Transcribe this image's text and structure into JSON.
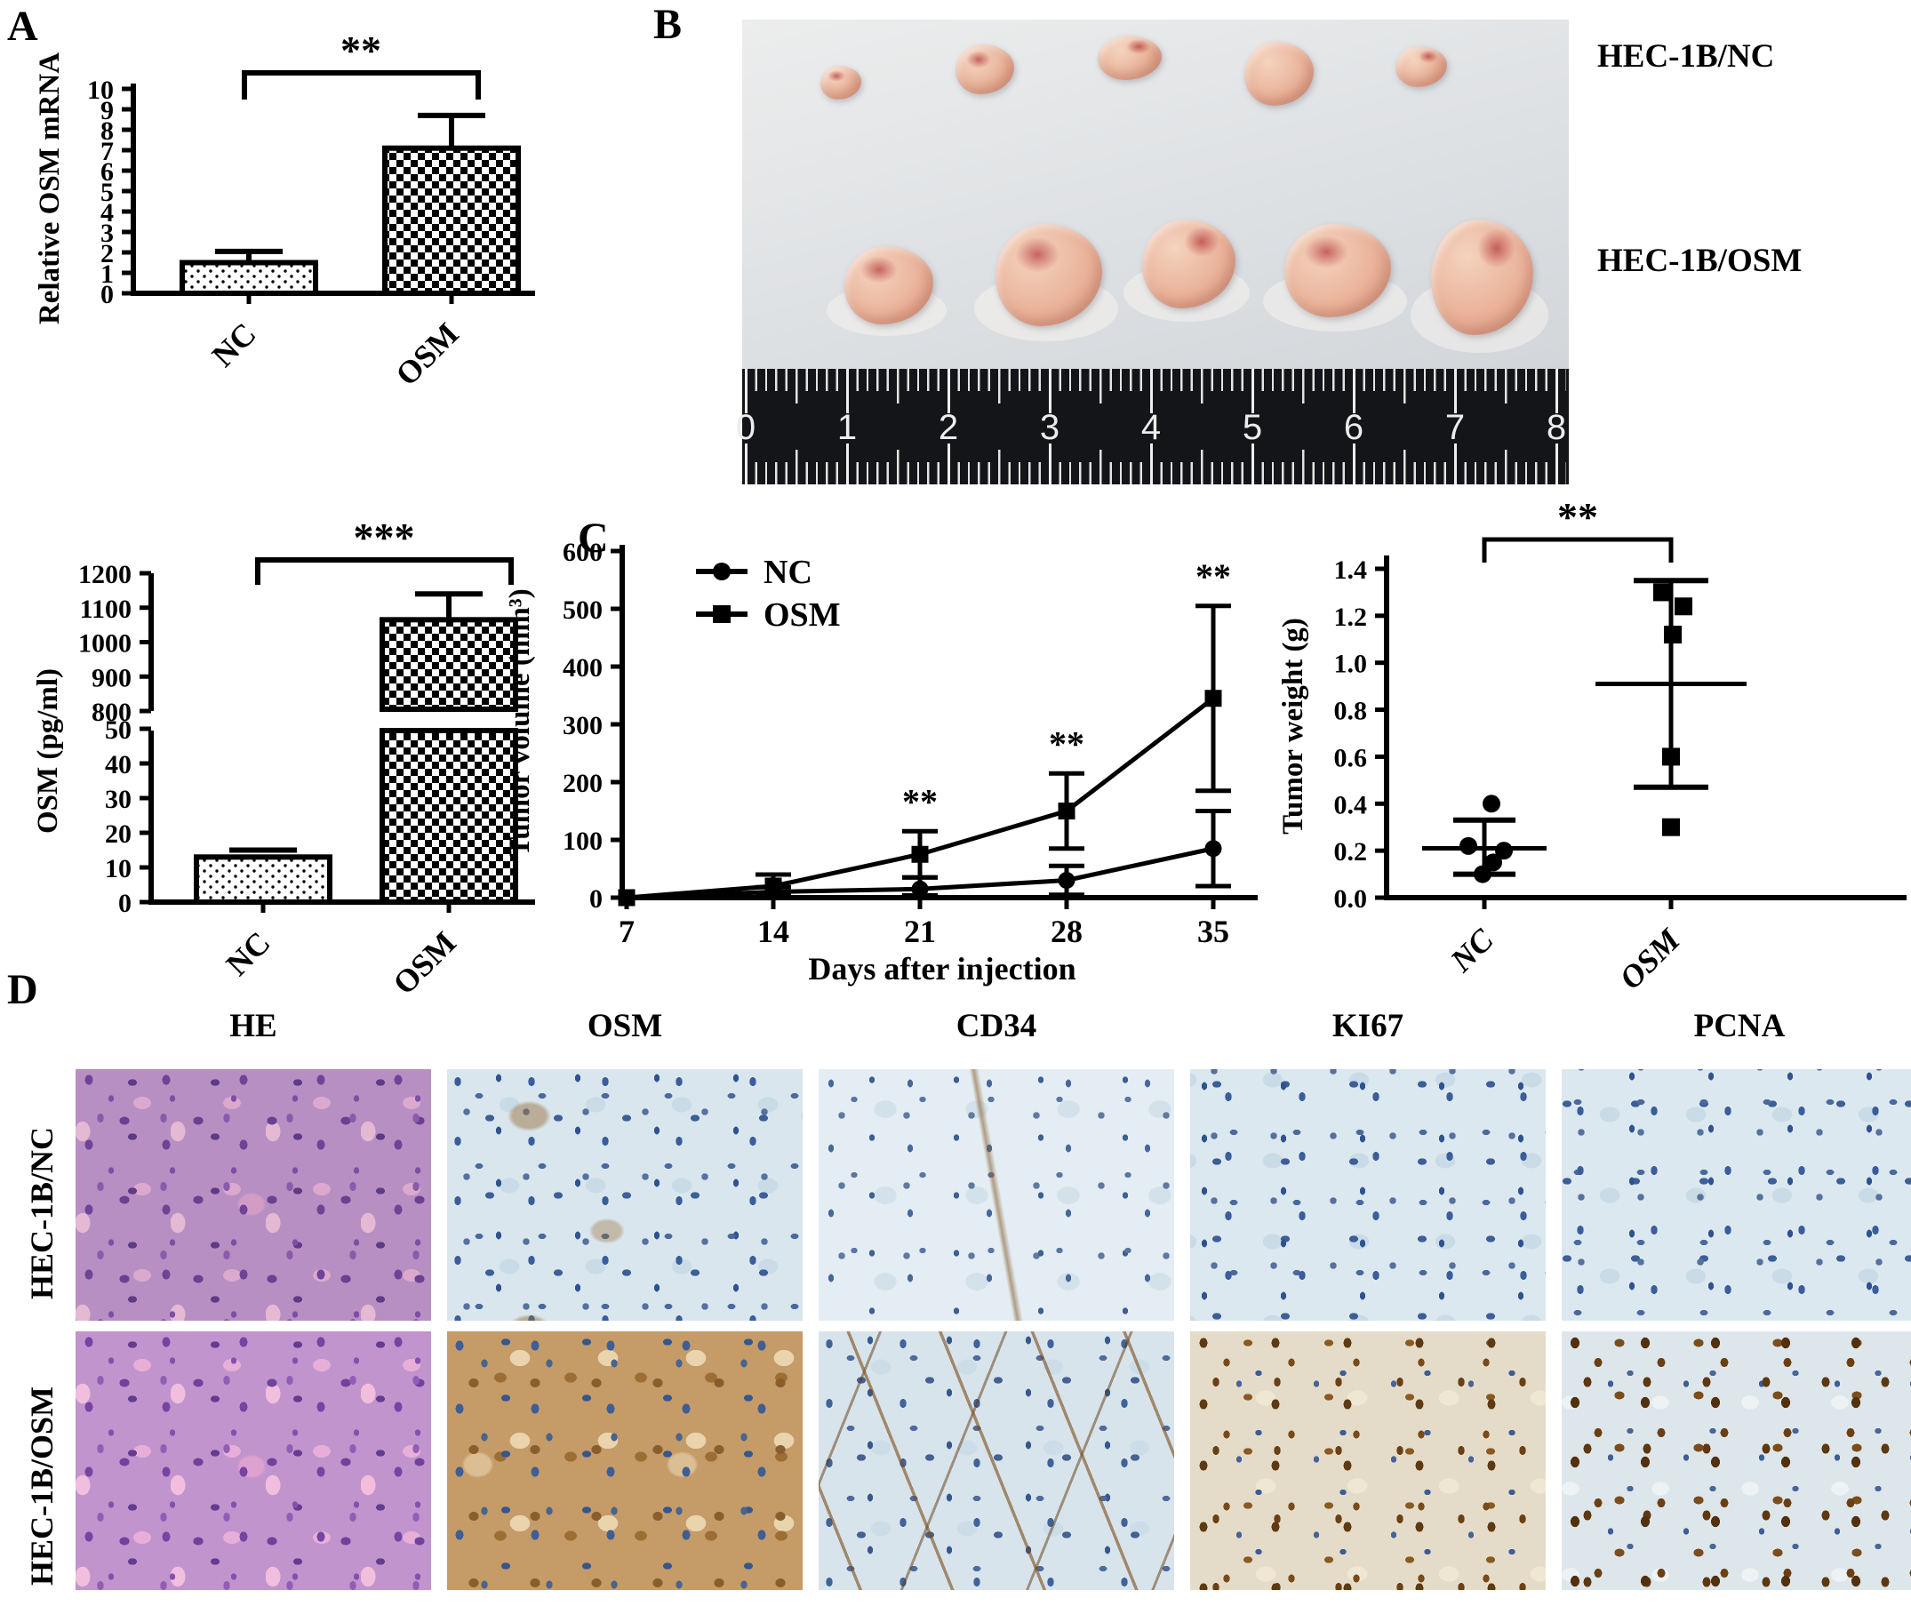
{
  "figure": {
    "panel_a_label": "A",
    "panel_b_label": "B",
    "panel_c_label": "C",
    "panel_d_label": "D"
  },
  "panel_b": {
    "row_labels": [
      "HEC-1B/NC",
      "HEC-1B/OSM"
    ],
    "ruler_numbers": [
      "0",
      "1",
      "2",
      "3",
      "4",
      "5",
      "6",
      "7",
      "8"
    ]
  },
  "panel_d": {
    "column_headers": [
      "HE",
      "OSM",
      "CD34",
      "KI67",
      "PCNA"
    ],
    "row_labels": [
      "HEC-1B/NC",
      "HEC-1B/OSM"
    ]
  },
  "chart_data": [
    {
      "id": "osm-mrna-bar",
      "type": "bar",
      "ylabel": "Relative OSM mRNA",
      "categories": [
        "NC",
        "OSM"
      ],
      "values": [
        1.5,
        7.1
      ],
      "error_top": [
        2.05,
        8.7
      ],
      "ylim": [
        0,
        10
      ],
      "ytick_step": 1,
      "significance": "**"
    },
    {
      "id": "osm-elisa-bar",
      "type": "bar",
      "ylabel": "OSM (pg/ml)",
      "categories": [
        "NC",
        "OSM"
      ],
      "values": [
        13,
        1065
      ],
      "error_top": [
        15,
        1140
      ],
      "axis_break": {
        "lower": [
          0,
          50
        ],
        "lower_step": 10,
        "upper": [
          800,
          1200
        ],
        "upper_step": 100
      },
      "significance": "***"
    },
    {
      "id": "tumor-volume-line",
      "type": "line",
      "ylabel": "Tumor volume (mm³)",
      "xlabel": "Days after injection",
      "x": [
        7,
        14,
        21,
        28,
        35
      ],
      "ylim": [
        0,
        600
      ],
      "ytick_step": 100,
      "legend_position": "top-left",
      "series": [
        {
          "name": "NC",
          "marker": "circle",
          "values": [
            0,
            10,
            15,
            30,
            85
          ],
          "error_low": [
            0,
            2,
            4,
            5,
            20
          ],
          "error_high": [
            0,
            18,
            35,
            55,
            150
          ]
        },
        {
          "name": "OSM",
          "marker": "square",
          "values": [
            0,
            20,
            75,
            150,
            345
          ],
          "error_low": [
            0,
            5,
            35,
            85,
            185
          ],
          "error_high": [
            0,
            40,
            115,
            215,
            505
          ]
        }
      ],
      "significance_label": "**",
      "significance_x": [
        21,
        28,
        35
      ]
    },
    {
      "id": "tumor-weight-scatter",
      "type": "scatter",
      "ylabel": "Tumor weight (g)",
      "ylim": [
        0,
        1.4
      ],
      "ytick_step": 0.2,
      "categories": [
        "NC",
        "OSM"
      ],
      "groups": [
        {
          "name": "NC",
          "marker": "circle",
          "points": [
            0.4,
            0.22,
            0.2,
            0.15,
            0.1
          ],
          "mean": 0.21,
          "whisker_low": 0.1,
          "whisker_high": 0.33
        },
        {
          "name": "OSM",
          "marker": "square",
          "points": [
            1.3,
            1.24,
            1.12,
            0.6,
            0.3
          ],
          "mean": 0.91,
          "whisker_low": 0.47,
          "whisker_high": 1.35
        }
      ],
      "significance": "**"
    }
  ]
}
